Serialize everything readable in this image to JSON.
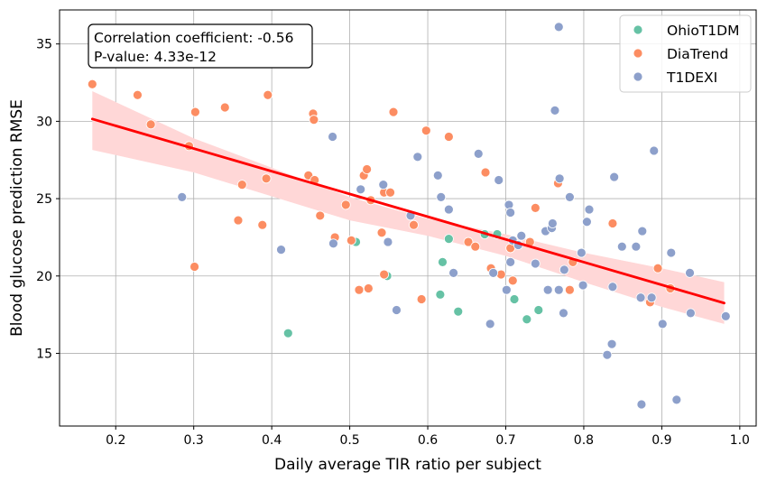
{
  "chart_data": {
    "type": "scatter",
    "title": "",
    "xlabel": "Daily average TIR ratio per subject",
    "ylabel": "Blood glucose prediction RMSE",
    "xlim": [
      0.128,
      1.021
    ],
    "ylim": [
      10.3,
      37.2
    ],
    "xticks": [
      0.2,
      0.3,
      0.4,
      0.5,
      0.6,
      0.7,
      0.8,
      0.9,
      1.0
    ],
    "xtick_labels": [
      "0.2",
      "0.3",
      "0.4",
      "0.5",
      "0.6",
      "0.7",
      "0.8",
      "0.9",
      "1.0"
    ],
    "yticks": [
      15,
      20,
      25,
      30,
      35
    ],
    "ytick_labels": [
      "15",
      "20",
      "25",
      "30",
      "35"
    ],
    "grid": true,
    "legend_position": "top-right",
    "annotation": {
      "line1": "Correlation coefficient: -0.56",
      "line2": "P-value: 4.33e-12",
      "position": "top-left"
    },
    "regression": {
      "color": "#ff0000",
      "band_color": "#ffd7d7",
      "line": [
        [
          0.17,
          30.15
        ],
        [
          0.98,
          18.25
        ]
      ],
      "band_upper": [
        [
          0.17,
          31.95
        ],
        [
          0.3,
          28.9
        ],
        [
          0.5,
          25.1
        ],
        [
          0.6,
          23.7
        ],
        [
          0.7,
          22.7
        ],
        [
          0.8,
          21.5
        ],
        [
          0.9,
          20.5
        ],
        [
          0.98,
          19.6
        ]
      ],
      "band_lower": [
        [
          0.17,
          28.15
        ],
        [
          0.3,
          26.7
        ],
        [
          0.5,
          23.6
        ],
        [
          0.6,
          22.6
        ],
        [
          0.7,
          21.3
        ],
        [
          0.8,
          19.6
        ],
        [
          0.9,
          18.0
        ],
        [
          0.98,
          16.9
        ]
      ]
    },
    "series": [
      {
        "name": "OhioT1DM",
        "color": "#66c2a5",
        "points": [
          [
            0.421,
            16.3
          ],
          [
            0.508,
            22.2
          ],
          [
            0.548,
            20.0
          ],
          [
            0.619,
            20.9
          ],
          [
            0.616,
            18.8
          ],
          [
            0.627,
            22.4
          ],
          [
            0.639,
            17.7
          ],
          [
            0.673,
            22.7
          ],
          [
            0.689,
            22.7
          ],
          [
            0.711,
            18.5
          ],
          [
            0.727,
            17.2
          ],
          [
            0.742,
            17.8
          ]
        ]
      },
      {
        "name": "DiaTrend",
        "color": "#fc8d62",
        "points": [
          [
            0.17,
            32.4
          ],
          [
            0.228,
            31.7
          ],
          [
            0.245,
            29.8
          ],
          [
            0.294,
            28.4
          ],
          [
            0.301,
            20.6
          ],
          [
            0.302,
            30.6
          ],
          [
            0.34,
            30.9
          ],
          [
            0.357,
            23.6
          ],
          [
            0.362,
            25.9
          ],
          [
            0.388,
            23.3
          ],
          [
            0.393,
            26.3
          ],
          [
            0.395,
            31.7
          ],
          [
            0.447,
            26.5
          ],
          [
            0.453,
            30.5
          ],
          [
            0.454,
            30.1
          ],
          [
            0.455,
            26.2
          ],
          [
            0.462,
            23.9
          ],
          [
            0.481,
            22.5
          ],
          [
            0.495,
            24.6
          ],
          [
            0.502,
            22.3
          ],
          [
            0.512,
            19.1
          ],
          [
            0.518,
            26.5
          ],
          [
            0.522,
            26.9
          ],
          [
            0.524,
            19.2
          ],
          [
            0.527,
            24.9
          ],
          [
            0.541,
            22.8
          ],
          [
            0.544,
            20.1
          ],
          [
            0.544,
            25.4
          ],
          [
            0.552,
            25.4
          ],
          [
            0.556,
            30.6
          ],
          [
            0.582,
            23.3
          ],
          [
            0.592,
            18.5
          ],
          [
            0.598,
            29.4
          ],
          [
            0.627,
            29.0
          ],
          [
            0.652,
            22.2
          ],
          [
            0.661,
            21.9
          ],
          [
            0.674,
            26.7
          ],
          [
            0.681,
            20.5
          ],
          [
            0.694,
            20.1
          ],
          [
            0.706,
            21.8
          ],
          [
            0.709,
            19.7
          ],
          [
            0.731,
            22.2
          ],
          [
            0.738,
            24.4
          ],
          [
            0.767,
            26.0
          ],
          [
            0.782,
            19.1
          ],
          [
            0.786,
            20.9
          ],
          [
            0.837,
            23.4
          ],
          [
            0.885,
            18.3
          ],
          [
            0.895,
            20.5
          ],
          [
            0.911,
            19.2
          ]
        ]
      },
      {
        "name": "T1DEXI",
        "color": "#8da0cb",
        "points": [
          [
            0.285,
            25.1
          ],
          [
            0.412,
            21.7
          ],
          [
            0.478,
            29.0
          ],
          [
            0.479,
            22.1
          ],
          [
            0.514,
            25.6
          ],
          [
            0.543,
            25.9
          ],
          [
            0.549,
            22.2
          ],
          [
            0.56,
            17.8
          ],
          [
            0.578,
            23.9
          ],
          [
            0.587,
            27.7
          ],
          [
            0.613,
            26.5
          ],
          [
            0.617,
            25.1
          ],
          [
            0.627,
            24.3
          ],
          [
            0.633,
            20.2
          ],
          [
            0.665,
            27.9
          ],
          [
            0.68,
            16.9
          ],
          [
            0.684,
            20.2
          ],
          [
            0.691,
            26.2
          ],
          [
            0.701,
            19.1
          ],
          [
            0.704,
            24.6
          ],
          [
            0.706,
            24.1
          ],
          [
            0.706,
            20.9
          ],
          [
            0.709,
            22.3
          ],
          [
            0.716,
            22.0
          ],
          [
            0.72,
            22.6
          ],
          [
            0.738,
            20.8
          ],
          [
            0.751,
            22.9
          ],
          [
            0.754,
            19.1
          ],
          [
            0.759,
            23.1
          ],
          [
            0.76,
            23.4
          ],
          [
            0.763,
            30.7
          ],
          [
            0.768,
            19.1
          ],
          [
            0.769,
            26.3
          ],
          [
            0.768,
            36.1
          ],
          [
            0.774,
            17.6
          ],
          [
            0.775,
            20.4
          ],
          [
            0.782,
            25.1
          ],
          [
            0.797,
            21.5
          ],
          [
            0.799,
            19.4
          ],
          [
            0.804,
            23.5
          ],
          [
            0.807,
            24.3
          ],
          [
            0.83,
            14.9
          ],
          [
            0.836,
            15.6
          ],
          [
            0.837,
            19.3
          ],
          [
            0.839,
            26.4
          ],
          [
            0.849,
            21.9
          ],
          [
            0.867,
            21.9
          ],
          [
            0.875,
            22.9
          ],
          [
            0.873,
            18.6
          ],
          [
            0.874,
            11.7
          ],
          [
            0.887,
            18.6
          ],
          [
            0.89,
            28.1
          ],
          [
            0.901,
            16.9
          ],
          [
            0.912,
            21.5
          ],
          [
            0.919,
            12.0
          ],
          [
            0.936,
            20.2
          ],
          [
            0.937,
            17.6
          ],
          [
            0.982,
            17.4
          ]
        ]
      }
    ]
  }
}
